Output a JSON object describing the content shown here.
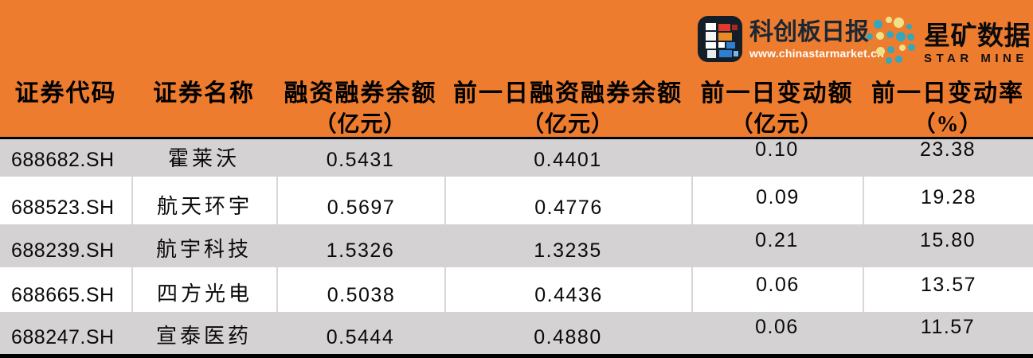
{
  "brand": {
    "star_market_daily": {
      "title": "科创板日报",
      "url": "www.chinastarmarket.cn"
    },
    "star_mine": {
      "title": "星矿数据",
      "subtitle": "STAR MINE"
    },
    "colors": {
      "banner_bg": "#ED7C2F",
      "row_stripe": "#D5D2D3",
      "row_white": "#FFFFFF",
      "divider": "#000000",
      "kcb_icon_bg": "#141E28",
      "dot_teal": "#31A8BE",
      "dot_yellow": "#EEE289",
      "header_text": "#000000"
    }
  },
  "chart_data": {
    "type": "table",
    "columns": [
      {
        "key": "code",
        "label": "证券代码",
        "unit": ""
      },
      {
        "key": "name",
        "label": "证券名称",
        "unit": ""
      },
      {
        "key": "balance",
        "label": "融资融券余额",
        "unit": "（亿元）"
      },
      {
        "key": "prev_balance",
        "label": "前一日融资融券余额",
        "unit": "（亿元）"
      },
      {
        "key": "change",
        "label": "前一日变动额",
        "unit": "（亿元）"
      },
      {
        "key": "change_pct",
        "label": "前一日变动率",
        "unit": "（%）"
      }
    ],
    "rows": [
      {
        "code": "688682.SH",
        "name": "霍莱沃",
        "balance": "0.5431",
        "prev_balance": "0.4401",
        "change": "0.10",
        "change_pct": "23.38"
      },
      {
        "code": "688523.SH",
        "name": "航天环宇",
        "balance": "0.5697",
        "prev_balance": "0.4776",
        "change": "0.09",
        "change_pct": "19.28"
      },
      {
        "code": "688239.SH",
        "name": "航宇科技",
        "balance": "1.5326",
        "prev_balance": "1.3235",
        "change": "0.21",
        "change_pct": "15.80"
      },
      {
        "code": "688665.SH",
        "name": "四方光电",
        "balance": "0.5038",
        "prev_balance": "0.4436",
        "change": "0.06",
        "change_pct": "13.57"
      },
      {
        "code": "688247.SH",
        "name": "宣泰医药",
        "balance": "0.5444",
        "prev_balance": "0.4880",
        "change": "0.06",
        "change_pct": "11.57"
      }
    ]
  }
}
